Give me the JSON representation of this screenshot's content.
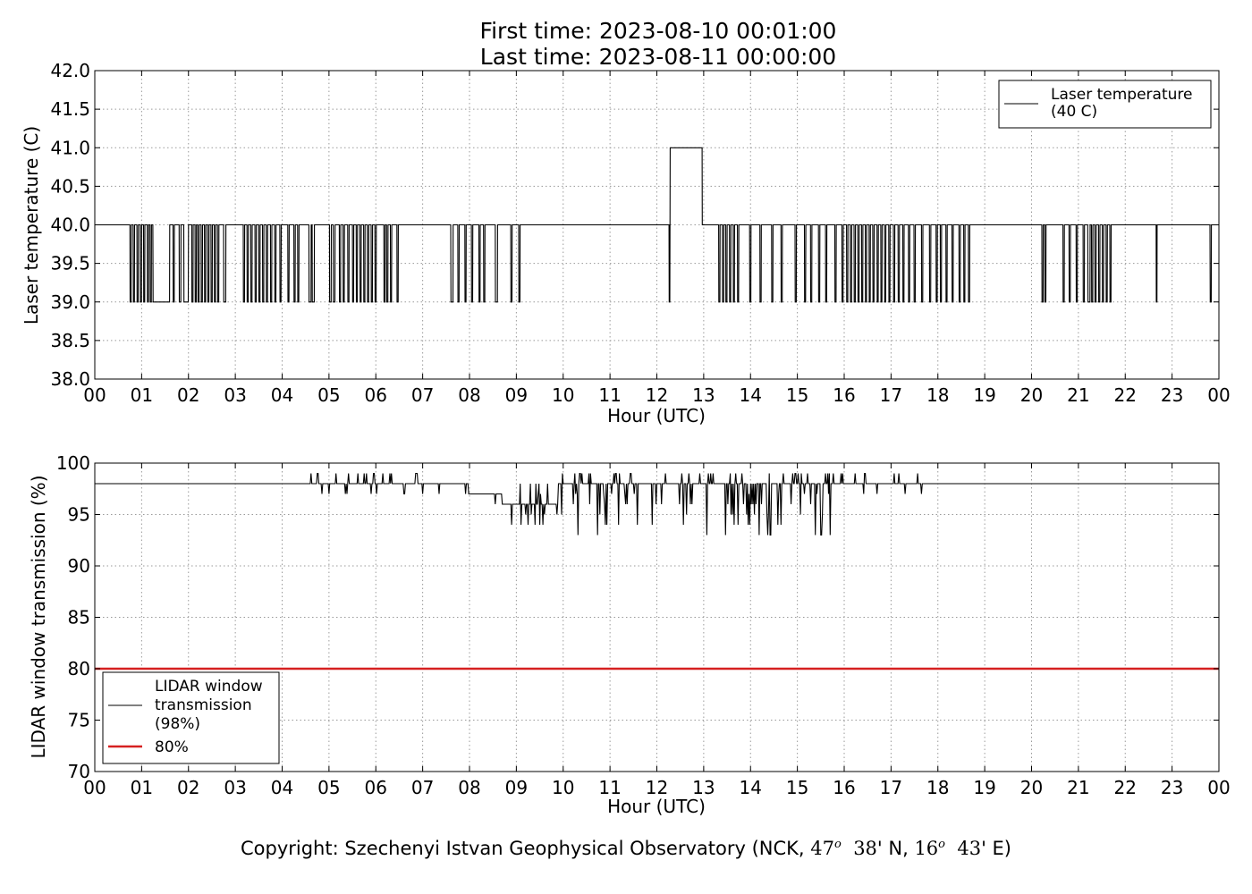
{
  "title_line1": "First time: 2023-08-10 00:01:00",
  "title_line2": "Last time: 2023-08-11 00:00:00",
  "copyright": {
    "prefix": "Copyright: Szechenyi Istvan Geophysical Observatory (NCK, ",
    "lat_deg": "47",
    "lat_deg_sym": "o",
    "lat_min": "38",
    "lat_rest": "' N, ",
    "lon_deg": "16",
    "lon_deg_sym": "o",
    "lon_min": "43",
    "lon_rest": "' E)"
  },
  "colors": {
    "series": "#000000",
    "threshold": "#d62020",
    "grid": "#9a9a9a"
  },
  "chart_data": [
    {
      "type": "line",
      "xlabel": "Hour (UTC)",
      "ylabel": "Laser temperature (C)",
      "xlim": [
        0,
        24
      ],
      "ylim": [
        38.0,
        42.0
      ],
      "xticks": [
        "00",
        "01",
        "02",
        "03",
        "04",
        "05",
        "06",
        "07",
        "08",
        "09",
        "10",
        "11",
        "12",
        "13",
        "14",
        "15",
        "16",
        "17",
        "18",
        "19",
        "20",
        "21",
        "22",
        "23",
        "00"
      ],
      "yticks": [
        "38.0",
        "38.5",
        "39.0",
        "39.5",
        "40.0",
        "40.5",
        "41.0",
        "41.5",
        "42.0"
      ],
      "grid": true,
      "legend_position": "top-right",
      "series": [
        {
          "name": "Laser temperature\n(40 C)",
          "baseline": 40.0,
          "dips_to_39": [
            [
              0.75,
              0.78
            ],
            [
              0.82,
              0.85
            ],
            [
              0.9,
              0.93
            ],
            [
              0.97,
              1.0
            ],
            [
              1.04,
              1.07
            ],
            [
              1.12,
              1.15
            ],
            [
              1.18,
              1.21
            ],
            [
              1.24,
              1.6
            ],
            [
              1.67,
              1.7
            ],
            [
              1.8,
              1.84
            ],
            [
              1.9,
              2.0
            ],
            [
              2.07,
              2.1
            ],
            [
              2.14,
              2.17
            ],
            [
              2.2,
              2.23
            ],
            [
              2.27,
              2.3
            ],
            [
              2.34,
              2.37
            ],
            [
              2.41,
              2.44
            ],
            [
              2.48,
              2.51
            ],
            [
              2.55,
              2.58
            ],
            [
              2.62,
              2.65
            ],
            [
              2.75,
              2.8
            ],
            [
              3.17,
              3.2
            ],
            [
              3.25,
              3.28
            ],
            [
              3.33,
              3.36
            ],
            [
              3.42,
              3.45
            ],
            [
              3.5,
              3.53
            ],
            [
              3.58,
              3.61
            ],
            [
              3.66,
              3.69
            ],
            [
              3.75,
              3.78
            ],
            [
              3.84,
              3.87
            ],
            [
              3.95,
              3.98
            ],
            [
              4.12,
              4.15
            ],
            [
              4.25,
              4.28
            ],
            [
              4.33,
              4.36
            ],
            [
              4.57,
              4.62
            ],
            [
              4.64,
              4.69
            ],
            [
              5.01,
              5.05
            ],
            [
              5.09,
              5.13
            ],
            [
              5.22,
              5.25
            ],
            [
              5.3,
              5.33
            ],
            [
              5.4,
              5.43
            ],
            [
              5.5,
              5.53
            ],
            [
              5.58,
              5.61
            ],
            [
              5.66,
              5.69
            ],
            [
              5.74,
              5.77
            ],
            [
              5.82,
              5.85
            ],
            [
              5.9,
              5.93
            ],
            [
              5.98,
              6.01
            ],
            [
              6.17,
              6.2
            ],
            [
              6.23,
              6.26
            ],
            [
              6.31,
              6.34
            ],
            [
              6.45,
              6.48
            ],
            [
              7.6,
              7.65
            ],
            [
              7.75,
              7.78
            ],
            [
              7.9,
              7.93
            ],
            [
              8.04,
              8.07
            ],
            [
              8.2,
              8.23
            ],
            [
              8.3,
              8.33
            ],
            [
              8.55,
              8.6
            ],
            [
              8.88,
              8.91
            ],
            [
              9.05,
              9.08
            ],
            [
              12.26,
              12.28
            ],
            [
              13.32,
              13.35
            ],
            [
              13.4,
              13.43
            ],
            [
              13.47,
              13.5
            ],
            [
              13.55,
              13.58
            ],
            [
              13.63,
              13.66
            ],
            [
              13.72,
              13.75
            ],
            [
              13.98,
              14.01
            ],
            [
              14.2,
              14.23
            ],
            [
              14.45,
              14.48
            ],
            [
              14.65,
              14.68
            ],
            [
              14.95,
              14.98
            ],
            [
              15.15,
              15.18
            ],
            [
              15.28,
              15.31
            ],
            [
              15.45,
              15.48
            ],
            [
              15.6,
              15.63
            ],
            [
              15.8,
              15.83
            ],
            [
              15.95,
              15.98
            ],
            [
              16.05,
              16.08
            ],
            [
              16.13,
              16.16
            ],
            [
              16.21,
              16.24
            ],
            [
              16.29,
              16.32
            ],
            [
              16.37,
              16.4
            ],
            [
              16.45,
              16.48
            ],
            [
              16.53,
              16.56
            ],
            [
              16.61,
              16.64
            ],
            [
              16.7,
              16.73
            ],
            [
              16.78,
              16.81
            ],
            [
              16.86,
              16.89
            ],
            [
              16.95,
              16.98
            ],
            [
              17.05,
              17.08
            ],
            [
              17.15,
              17.18
            ],
            [
              17.25,
              17.28
            ],
            [
              17.37,
              17.4
            ],
            [
              17.49,
              17.52
            ],
            [
              17.65,
              17.68
            ],
            [
              17.82,
              17.85
            ],
            [
              17.96,
              17.99
            ],
            [
              18.05,
              18.08
            ],
            [
              18.17,
              18.2
            ],
            [
              18.3,
              18.33
            ],
            [
              18.45,
              18.48
            ],
            [
              18.55,
              18.58
            ],
            [
              18.65,
              18.68
            ],
            [
              20.22,
              20.25
            ],
            [
              20.28,
              20.31
            ],
            [
              20.67,
              20.7
            ],
            [
              20.8,
              20.83
            ],
            [
              20.95,
              20.98
            ],
            [
              21.1,
              21.13
            ],
            [
              21.2,
              21.25
            ],
            [
              21.28,
              21.31
            ],
            [
              21.35,
              21.38
            ],
            [
              21.43,
              21.46
            ],
            [
              21.51,
              21.54
            ],
            [
              21.59,
              21.62
            ],
            [
              21.67,
              21.7
            ],
            [
              22.66,
              22.68
            ],
            [
              23.81,
              23.84
            ]
          ],
          "rise_to_41": [
            12.28,
            12.97
          ]
        }
      ]
    },
    {
      "type": "line",
      "xlabel": "Hour (UTC)",
      "ylabel": "LIDAR window transmission (%)",
      "xlim": [
        0,
        24
      ],
      "ylim": [
        70,
        100
      ],
      "xticks": [
        "00",
        "01",
        "02",
        "03",
        "04",
        "05",
        "06",
        "07",
        "08",
        "09",
        "10",
        "11",
        "12",
        "13",
        "14",
        "15",
        "16",
        "17",
        "18",
        "19",
        "20",
        "21",
        "22",
        "23",
        "00"
      ],
      "yticks": [
        "70",
        "75",
        "80",
        "85",
        "90",
        "95",
        "100"
      ],
      "grid": true,
      "legend_position": "bottom-left",
      "series": [
        {
          "name": "LIDAR window\ntransmission\n(98%)",
          "values": {
            "baseline": 98,
            "start_hour": 4.6,
            "end_hour": 17.7,
            "noisy_segments": [
              {
                "from": 4.6,
                "to": 7.0,
                "center": 98,
                "range": [
                  97,
                  99
                ]
              },
              {
                "from": 7.0,
                "to": 8.0,
                "center": 97.6,
                "range": [
                  97,
                  98
                ]
              },
              {
                "from": 8.0,
                "to": 8.7,
                "center": 96.5,
                "range": [
                  96,
                  97
                ]
              },
              {
                "from": 8.7,
                "to": 9.9,
                "center": 96,
                "range": [
                  94,
                  98
                ]
              },
              {
                "from": 9.9,
                "to": 15.8,
                "center": 97.5,
                "range": [
                  93,
                  99
                ]
              },
              {
                "from": 15.8,
                "to": 17.7,
                "center": 98,
                "range": [
                  97,
                  99
                ]
              }
            ]
          }
        },
        {
          "name": "80%",
          "values": {
            "constant": 80
          }
        }
      ]
    }
  ]
}
